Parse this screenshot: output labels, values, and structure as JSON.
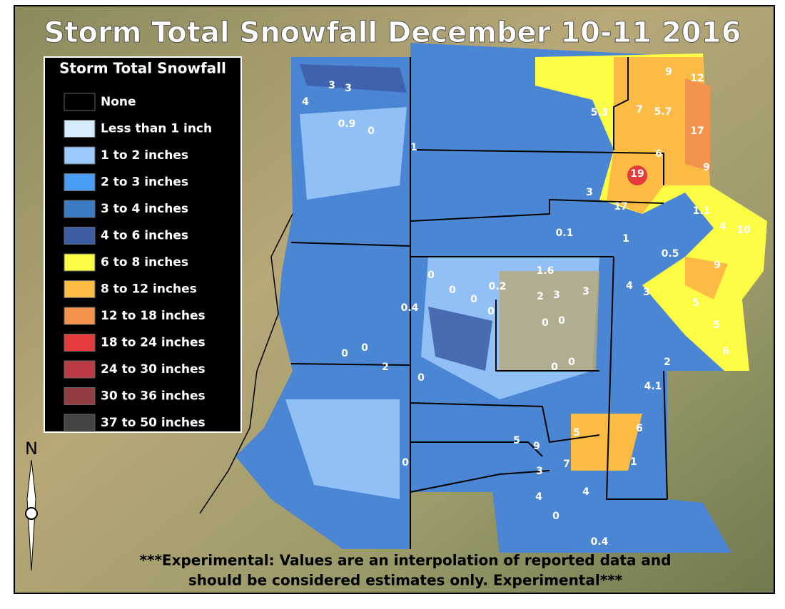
{
  "title": "Storm Total Snowfall December 10-11 2016",
  "legend": {
    "title": "Storm Total Snowfall",
    "items": [
      {
        "label": "None",
        "color": "#000000"
      },
      {
        "label": "Less than 1 inch",
        "color": "#d4ecfc"
      },
      {
        "label": "1 to 2 inches",
        "color": "#9ccafc"
      },
      {
        "label": "2 to 3 inches",
        "color": "#4a9cf4"
      },
      {
        "label": "3 to 4 inches",
        "color": "#3c7cc4"
      },
      {
        "label": "4 to 6 inches",
        "color": "#3c5ca4"
      },
      {
        "label": "6 to 8 inches",
        "color": "#fcfc44"
      },
      {
        "label": "8 to 12 inches",
        "color": "#fcbc44"
      },
      {
        "label": "12 to 18 inches",
        "color": "#f4944c"
      },
      {
        "label": "18 to 24 inches",
        "color": "#e43c3c"
      },
      {
        "label": "24 to 30 inches",
        "color": "#bc3c44"
      },
      {
        "label": "30 to 36 inches",
        "color": "#943c44"
      },
      {
        "label": "37 to 50 inches",
        "color": "#444444"
      }
    ]
  },
  "map": {
    "north_label": "N",
    "labels": [
      "3",
      "3",
      "4",
      "0.9",
      "0",
      "1",
      "5.3",
      "7",
      "5.7",
      "9",
      "12",
      "17",
      "6",
      "9",
      "19",
      "3",
      "17",
      "1.1",
      "4",
      "10",
      "0.1",
      "1",
      "0.5",
      "9",
      "1.6",
      "0",
      "0",
      "0",
      "0.2",
      "0.4",
      "0",
      "2",
      "3",
      "3",
      "4",
      "3",
      "5",
      "5",
      "6",
      "0",
      "0",
      "0",
      "0",
      "2",
      "0",
      "0",
      "0",
      "2",
      "4.1",
      "5",
      "9",
      "5",
      "6",
      "7",
      "1",
      "0",
      "3",
      "4",
      "4",
      "0",
      "0.4"
    ]
  },
  "disclaimer": [
    "***Experimental: Values are an interpolation of reported data and",
    "should be considered estimates only. Experimental***"
  ]
}
